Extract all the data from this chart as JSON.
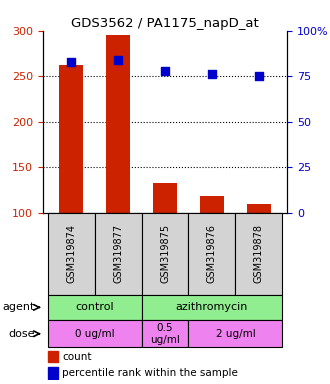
{
  "title": "GDS3562 / PA1175_napD_at",
  "samples": [
    "GSM319874",
    "GSM319877",
    "GSM319875",
    "GSM319876",
    "GSM319878"
  ],
  "bar_values": [
    262,
    295,
    133,
    118,
    110
  ],
  "dot_values": [
    83,
    84,
    78,
    76,
    75
  ],
  "bar_color": "#cc2200",
  "dot_color": "#0000cc",
  "ylim_left": [
    100,
    300
  ],
  "ylim_right": [
    0,
    100
  ],
  "yticks_left": [
    100,
    150,
    200,
    250,
    300
  ],
  "yticks_right": [
    0,
    25,
    50,
    75,
    100
  ],
  "yticklabels_right": [
    "0",
    "25",
    "50",
    "75",
    "100%"
  ],
  "agent_color": "#90ee90",
  "dose_color": "#ee82ee",
  "sample_color": "#d3d3d3",
  "legend_count_label": "count",
  "legend_pct_label": "percentile rank within the sample",
  "title_color": "#000000",
  "left_tick_color": "#cc2200",
  "right_tick_color": "#0000cc",
  "gridline_values": [
    150,
    200,
    250
  ]
}
